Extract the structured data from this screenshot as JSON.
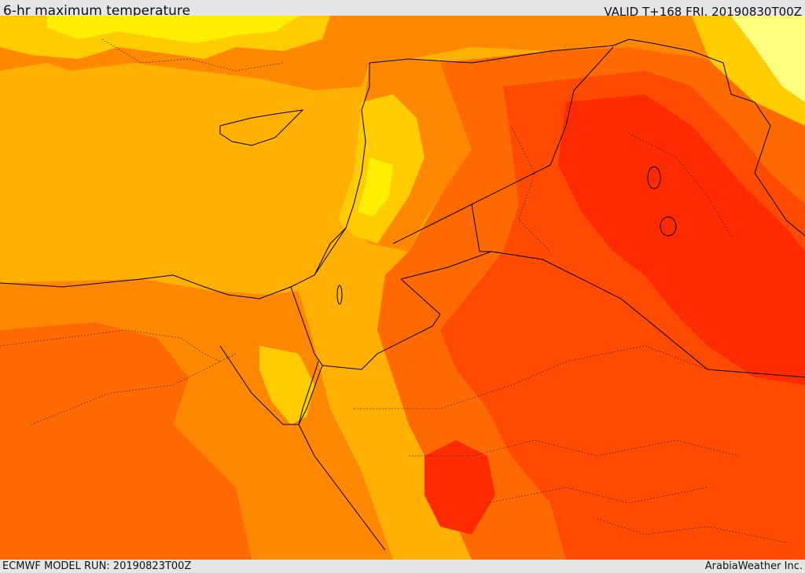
{
  "header": {
    "title": "6-hr maximum temperature",
    "valid_time": "VALID T+168 FRI. 20190830T00Z"
  },
  "footer": {
    "model_run": "ECMWF MODEL RUN: 20190823T00Z",
    "credit": "ArabiaWeather Inc."
  },
  "map": {
    "region": "Eastern Mediterranean and Middle East",
    "field": "6-hr maximum temperature",
    "palette": {
      "pale_yellow": "#ffff80",
      "yellow": "#ffee00",
      "light_orange": "#ffcc00",
      "sea_orange": "#ffb000",
      "orange": "#ff8800",
      "dark_orange": "#ff6a00",
      "red_orange": "#ff4a00",
      "red": "#ff2a00"
    },
    "border_color": "#000000",
    "boundary_style": "dotted"
  }
}
